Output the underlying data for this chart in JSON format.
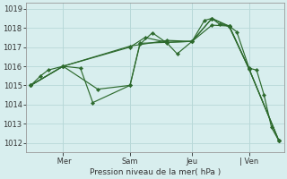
{
  "bg_color": "#d8eeee",
  "grid_color": "#b8d8d8",
  "line_color": "#2d6a2d",
  "marker_color": "#2d6a2d",
  "xlabel": "Pression niveau de la mer( hPa )",
  "ylim": [
    1011.5,
    1019.3
  ],
  "yticks": [
    1012,
    1013,
    1014,
    1015,
    1016,
    1017,
    1018,
    1019
  ],
  "xtick_labels": [
    " Mer",
    "Sam",
    "Jeu",
    "| Ven"
  ],
  "xtick_positions": [
    0.13,
    0.4,
    0.65,
    0.88
  ],
  "vlines": [
    0.13,
    0.4,
    0.65,
    0.88
  ],
  "series": [
    [
      0.0,
      1015.0,
      0.04,
      1015.5,
      0.07,
      1015.8,
      0.13,
      1016.0,
      0.2,
      1015.9,
      0.25,
      1014.1,
      0.4,
      1015.0,
      0.44,
      1017.15,
      0.49,
      1017.75,
      0.55,
      1017.2,
      0.59,
      1016.65,
      0.65,
      1017.3,
      0.7,
      1018.4,
      0.73,
      1018.5,
      0.76,
      1018.2,
      0.8,
      1018.1,
      0.83,
      1017.8,
      0.88,
      1015.9,
      0.91,
      1015.8,
      0.94,
      1014.5,
      0.97,
      1012.8,
      1.0,
      1012.1
    ],
    [
      0.0,
      1015.0,
      0.13,
      1016.0,
      0.27,
      1014.8,
      0.4,
      1015.0,
      0.44,
      1017.2,
      0.55,
      1017.25,
      0.65,
      1017.3,
      0.73,
      1018.5,
      0.8,
      1018.1,
      0.88,
      1015.85,
      1.0,
      1012.1
    ],
    [
      0.0,
      1015.0,
      0.13,
      1016.0,
      0.4,
      1017.0,
      0.46,
      1017.5,
      0.55,
      1017.25,
      0.65,
      1017.3,
      0.73,
      1018.15,
      0.8,
      1018.1,
      0.88,
      1015.85,
      1.0,
      1012.1
    ],
    [
      0.0,
      1015.0,
      0.13,
      1016.0,
      0.4,
      1017.05,
      0.55,
      1017.35,
      0.65,
      1017.3,
      0.73,
      1018.5,
      0.8,
      1018.05,
      0.88,
      1015.85,
      1.0,
      1012.1
    ]
  ],
  "figsize": [
    3.2,
    2.0
  ],
  "dpi": 100
}
